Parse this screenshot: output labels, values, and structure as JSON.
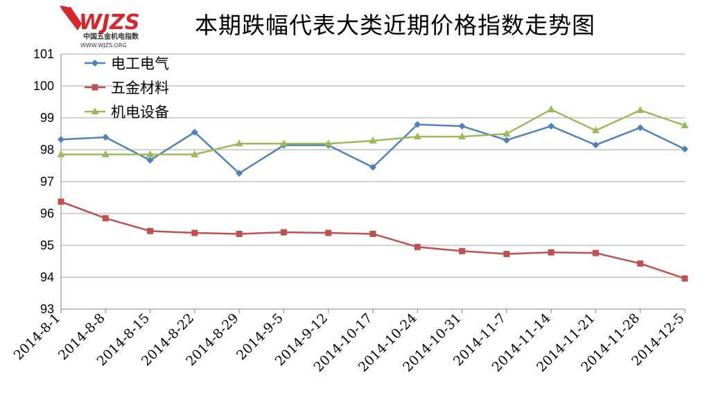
{
  "title": "本期跌幅代表大类近期价格指数走势图",
  "logo": {
    "mark": "WJZS",
    "subtitle": "中国五金机电指数",
    "url": "WWW.WJZS.ORG"
  },
  "colors": {
    "s1": "#4F81BD",
    "s2": "#C0504D",
    "s3": "#9BBB59",
    "grid": "#A6A6A6"
  },
  "chart_data": {
    "type": "line",
    "title": "本期跌幅代表大类近期价格指数走势图",
    "xlabel": "",
    "ylabel": "",
    "ylim": [
      93,
      101
    ],
    "yticks": [
      93,
      94,
      95,
      96,
      97,
      98,
      99,
      100,
      101
    ],
    "grid": true,
    "legend": "top-left",
    "categories": [
      "2014-8-1",
      "2014-8-8",
      "2014-8-15",
      "2014-8-22",
      "2014-8-29",
      "2014-9-5",
      "2014-9-12",
      "2014-10-17",
      "2014-10-24",
      "2014-10-31",
      "2014-11-7",
      "2014-11-14",
      "2014-11-21",
      "2014-11-28",
      "2014-12-5"
    ],
    "series": [
      {
        "name": "电工电气",
        "marker": "diamond",
        "color": "#4F81BD",
        "values": [
          98.32,
          98.39,
          97.67,
          98.55,
          97.26,
          98.14,
          98.14,
          97.45,
          98.79,
          98.74,
          98.3,
          98.74,
          98.15,
          98.69,
          98.02
        ]
      },
      {
        "name": "五金材料",
        "marker": "square",
        "color": "#C0504D",
        "values": [
          96.37,
          95.85,
          95.45,
          95.39,
          95.36,
          95.41,
          95.39,
          95.36,
          94.95,
          94.82,
          94.73,
          94.78,
          94.76,
          94.43,
          93.96
        ]
      },
      {
        "name": "机电设备",
        "marker": "triangle",
        "color": "#9BBB59",
        "values": [
          97.85,
          97.85,
          97.85,
          97.85,
          98.19,
          98.19,
          98.19,
          98.28,
          98.41,
          98.41,
          98.5,
          99.26,
          98.6,
          99.24,
          98.76
        ]
      }
    ]
  }
}
